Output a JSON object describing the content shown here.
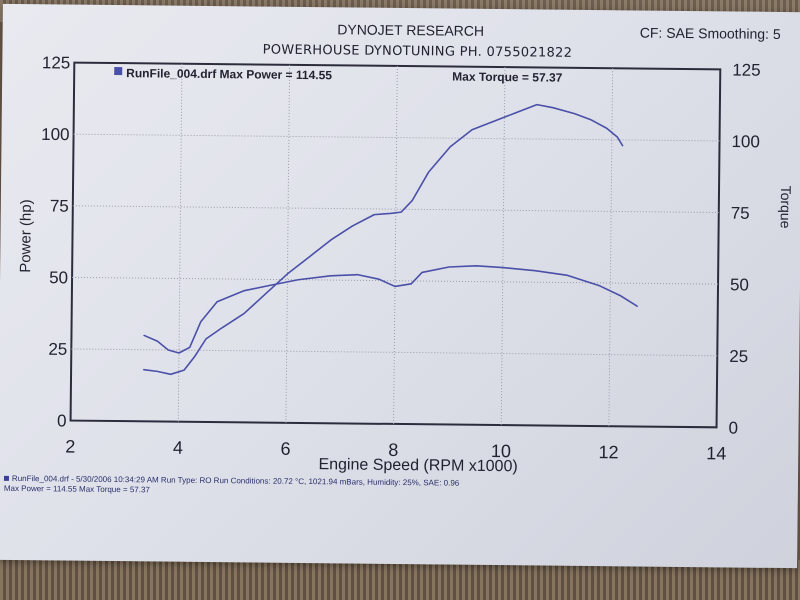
{
  "header": {
    "company": "DYNOJET RESEARCH",
    "shop": "POWERHOUSE DYNOTUNING PH. 0755021822",
    "settings": "CF: SAE  Smoothing: 5"
  },
  "legend": {
    "run_title": "RunFile_004.drf Max Power = 114.55",
    "max_torque": "Max Torque = 57.37"
  },
  "footer": {
    "line1": "RunFile_004.drf - 5/30/2006 10:34:29 AM  Run Type: RO  Run Conditions: 20.72 °C, 1021.94 mBars,  Humidity: 25%, SAE: 0.96",
    "line2": "Max Power = 114.55  Max Torque = 57.37"
  },
  "colors": {
    "curve": "#4a4fa8",
    "grid": "#9a9aaa",
    "frame": "#2c2c3c",
    "text": "#222230"
  },
  "chart_data": {
    "type": "line",
    "title": "DYNOJET RESEARCH",
    "xlabel": "Engine Speed (RPM x1000)",
    "ylabel": "Power (hp)",
    "ylabel_right": "Torque",
    "xlim": [
      2,
      14
    ],
    "ylim": [
      0,
      125
    ],
    "x_ticks": [
      2,
      4,
      6,
      8,
      10,
      12,
      14
    ],
    "y_ticks": [
      0,
      25,
      50,
      75,
      100,
      125
    ],
    "grid": true,
    "series": [
      {
        "name": "Power",
        "points": [
          [
            3.35,
            18
          ],
          [
            3.6,
            17.5
          ],
          [
            3.85,
            16.5
          ],
          [
            4.1,
            18
          ],
          [
            4.3,
            23
          ],
          [
            4.5,
            29
          ],
          [
            4.8,
            33
          ],
          [
            5.2,
            38
          ],
          [
            5.6,
            45
          ],
          [
            6.0,
            52
          ],
          [
            6.4,
            58
          ],
          [
            6.8,
            64
          ],
          [
            7.2,
            69
          ],
          [
            7.6,
            73
          ],
          [
            7.9,
            73.5
          ],
          [
            8.1,
            74
          ],
          [
            8.3,
            78
          ],
          [
            8.6,
            88
          ],
          [
            9.0,
            97
          ],
          [
            9.4,
            103
          ],
          [
            9.8,
            106
          ],
          [
            10.2,
            109
          ],
          [
            10.6,
            112
          ],
          [
            10.9,
            111
          ],
          [
            11.3,
            109
          ],
          [
            11.6,
            107
          ],
          [
            11.9,
            104
          ],
          [
            12.1,
            101
          ],
          [
            12.2,
            98
          ]
        ]
      },
      {
        "name": "Torque",
        "points": [
          [
            3.35,
            30
          ],
          [
            3.6,
            28
          ],
          [
            3.8,
            25
          ],
          [
            4.0,
            24
          ],
          [
            4.2,
            26
          ],
          [
            4.4,
            35
          ],
          [
            4.7,
            42
          ],
          [
            5.2,
            46
          ],
          [
            5.7,
            48
          ],
          [
            6.2,
            50
          ],
          [
            6.8,
            51.5
          ],
          [
            7.3,
            52
          ],
          [
            7.7,
            50.5
          ],
          [
            8.0,
            48
          ],
          [
            8.3,
            49
          ],
          [
            8.5,
            53
          ],
          [
            9.0,
            55
          ],
          [
            9.5,
            55.5
          ],
          [
            10.0,
            55
          ],
          [
            10.6,
            54
          ],
          [
            11.2,
            52.5
          ],
          [
            11.8,
            49
          ],
          [
            12.2,
            45.5
          ],
          [
            12.5,
            42
          ]
        ]
      }
    ]
  }
}
